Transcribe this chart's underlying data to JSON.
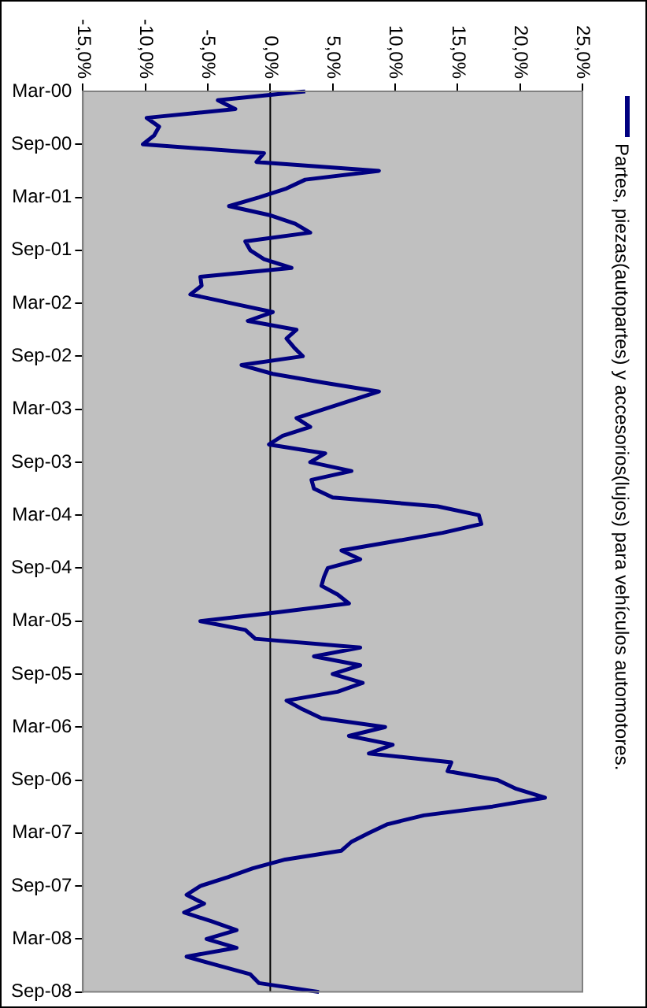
{
  "chart_data": {
    "type": "line",
    "categories": [
      "Mar-00",
      null,
      null,
      null,
      null,
      null,
      "Sep-00",
      null,
      null,
      null,
      null,
      null,
      "Mar-01",
      null,
      null,
      null,
      null,
      null,
      "Sep-01",
      null,
      null,
      null,
      null,
      null,
      "Mar-02",
      null,
      null,
      null,
      null,
      null,
      "Sep-02",
      null,
      null,
      null,
      null,
      null,
      "Mar-03",
      null,
      null,
      null,
      null,
      null,
      "Sep-03",
      null,
      null,
      null,
      null,
      null,
      "Mar-04",
      null,
      null,
      null,
      null,
      null,
      "Sep-04",
      null,
      null,
      null,
      null,
      null,
      "Mar-05",
      null,
      null,
      null,
      null,
      null,
      "Sep-05",
      null,
      null,
      null,
      null,
      null,
      "Mar-06",
      null,
      null,
      null,
      null,
      null,
      "Sep-06",
      null,
      null,
      null,
      null,
      null,
      "Mar-07",
      null,
      null,
      null,
      null,
      null,
      "Sep-07",
      null,
      null,
      null,
      null,
      null,
      "Mar-08",
      null,
      null,
      null,
      null,
      null,
      "Sep-08"
    ],
    "series": [
      {
        "name": "Partes, piezas(autopartes) y accesorios(lujos) para vehículos automotores.",
        "color": "#000080",
        "values": [
          2.8,
          -4.2,
          -2.8,
          -9.9,
          -8.9,
          -9.3,
          -10.2,
          -0.5,
          -1.1,
          8.7,
          2.8,
          1.3,
          -0.9,
          -3.3,
          -0.1,
          2.0,
          3.2,
          -2.0,
          -1.6,
          -0.5,
          1.7,
          -5.6,
          -5.5,
          -6.4,
          -3.1,
          0.2,
          -1.8,
          2.1,
          1.3,
          1.9,
          2.6,
          -2.3,
          0.2,
          4.3,
          8.7,
          6.5,
          4.3,
          2.1,
          3.2,
          1.0,
          -0.1,
          4.4,
          3.2,
          6.5,
          3.3,
          3.5,
          5.0,
          13.4,
          16.7,
          16.9,
          13.8,
          9.8,
          5.7,
          7.2,
          4.6,
          4.3,
          4.1,
          5.4,
          6.3,
          0.6,
          -5.6,
          -2.0,
          -1.2,
          7.2,
          3.5,
          7.2,
          5.0,
          7.4,
          5.4,
          1.3,
          2.6,
          4.1,
          9.2,
          6.3,
          9.8,
          7.9,
          14.5,
          14.2,
          18.2,
          19.7,
          22.0,
          17.8,
          12.3,
          9.4,
          7.9,
          6.5,
          5.7,
          1.2,
          -1.4,
          -3.4,
          -5.6,
          -6.7,
          -5.3,
          -6.9,
          -4.7,
          -2.7,
          -5.1,
          -2.7,
          -6.7,
          -4.2,
          -1.6,
          -0.9,
          3.9
        ]
      }
    ],
    "orientation": "horizontal",
    "xlim": [
      -15,
      25
    ],
    "xticks": [
      {
        "value": -15,
        "label": "-15,0%"
      },
      {
        "value": -10,
        "label": "-10,0%"
      },
      {
        "value": -5,
        "label": "-5,0%"
      },
      {
        "value": 0,
        "label": "0,0%"
      },
      {
        "value": 5,
        "label": "5,0%"
      },
      {
        "value": 10,
        "label": "10,0%"
      },
      {
        "value": 15,
        "label": "15,0%"
      },
      {
        "value": 20,
        "label": "20,0%"
      },
      {
        "value": 25,
        "label": "25,0%"
      }
    ],
    "ref_lines": [
      {
        "axis": "x",
        "value": 0,
        "color": "#000000"
      }
    ],
    "grid": false,
    "legend": "right",
    "marker": "none",
    "line_style": "solid"
  }
}
